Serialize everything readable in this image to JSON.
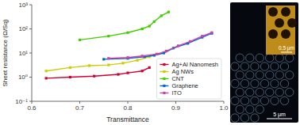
{
  "chart_data": {
    "type": "line",
    "xlabel": "Transmittance",
    "ylabel": "Sheet resistance (Ω/Sq)",
    "log": "y",
    "xlim": [
      0.6,
      1.0
    ],
    "xticks": [
      0.6,
      0.7,
      0.8,
      0.9,
      {
        "value": 1.0,
        "label": "1.0"
      }
    ],
    "ylim": [
      0.1,
      1000
    ],
    "yticks": [
      {
        "value": 0.1,
        "label": "10⁻¹"
      },
      {
        "value": 1,
        "label": "10⁰"
      },
      {
        "value": 10,
        "label": "10¹"
      },
      {
        "value": 100,
        "label": "10²"
      },
      {
        "value": 1000,
        "label": "10³"
      }
    ],
    "grid": false,
    "legend": "lower right",
    "marker": "square",
    "series": [
      {
        "name": "Ag+Al Nanomesh",
        "color": "#cc0033",
        "x": [
          0.63,
          0.68,
          0.73,
          0.78,
          0.8,
          0.83,
          0.845
        ],
        "values": [
          0.9,
          1.0,
          1.1,
          1.3,
          1.5,
          1.8,
          2.5
        ]
      },
      {
        "name": "Ag NWs",
        "color": "#cccc00",
        "x": [
          0.63,
          0.68,
          0.72,
          0.76,
          0.79,
          0.82,
          0.845,
          0.86
        ],
        "values": [
          1.8,
          2.5,
          3.0,
          3.2,
          3.8,
          5.0,
          7.0,
          9.0
        ]
      },
      {
        "name": "CNT",
        "color": "#44cc00",
        "x": [
          0.7,
          0.76,
          0.8,
          0.83,
          0.845,
          0.855,
          0.87,
          0.885
        ],
        "values": [
          35,
          50,
          70,
          100,
          130,
          200,
          350,
          500
        ]
      },
      {
        "name": "Graphene",
        "color": "#0066cc",
        "x": [
          0.75,
          0.8,
          0.835,
          0.855,
          0.875,
          0.895,
          0.925,
          0.955,
          0.975
        ],
        "values": [
          5.5,
          6.0,
          7.0,
          8.0,
          10,
          16,
          25,
          45,
          65
        ]
      },
      {
        "name": "ITO",
        "color": "#cc44aa",
        "x": [
          0.76,
          0.8,
          0.83,
          0.86,
          0.88,
          0.905,
          0.93,
          0.955,
          0.975
        ],
        "values": [
          6.0,
          6.5,
          7.5,
          9.0,
          12,
          20,
          30,
          50,
          70
        ]
      }
    ],
    "annotations": [
      "5 μm",
      "0.5 μm"
    ]
  }
}
